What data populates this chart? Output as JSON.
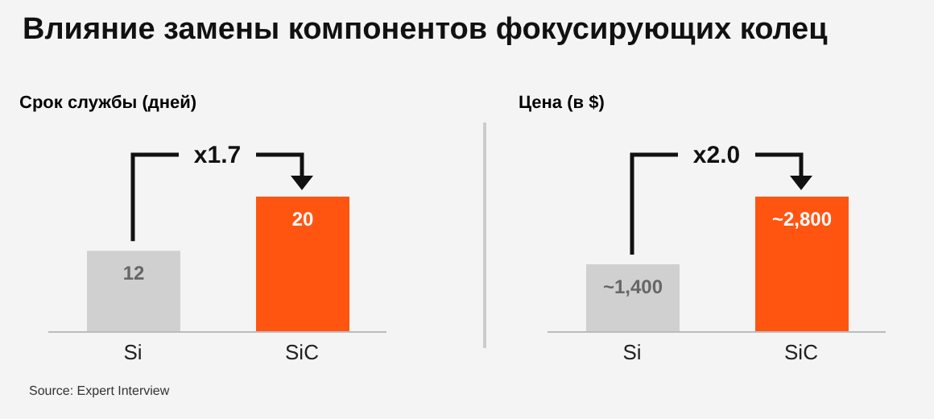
{
  "chart_data": [
    {
      "type": "bar",
      "title": "Влияние замены компонентов фокусирующих колец",
      "subtitle": "Срок службы (дней)",
      "categories": [
        "Si",
        "SiC"
      ],
      "values": [
        12,
        20
      ],
      "colors": [
        "#d0d0d0",
        "#ff5511"
      ],
      "data_labels": true,
      "annotations": [
        "x1.7",
        "Source: Expert Interview"
      ]
    },
    {
      "type": "bar",
      "subtitle": "Цена (в $)",
      "categories": [
        "Si",
        "SiC"
      ],
      "values": [
        1400,
        2800
      ],
      "value_labels": [
        "~1,400",
        "~2,800"
      ],
      "colors": [
        "#d0d0d0",
        "#ff5511"
      ],
      "annotations": [
        "x2.0"
      ]
    }
  ]
}
